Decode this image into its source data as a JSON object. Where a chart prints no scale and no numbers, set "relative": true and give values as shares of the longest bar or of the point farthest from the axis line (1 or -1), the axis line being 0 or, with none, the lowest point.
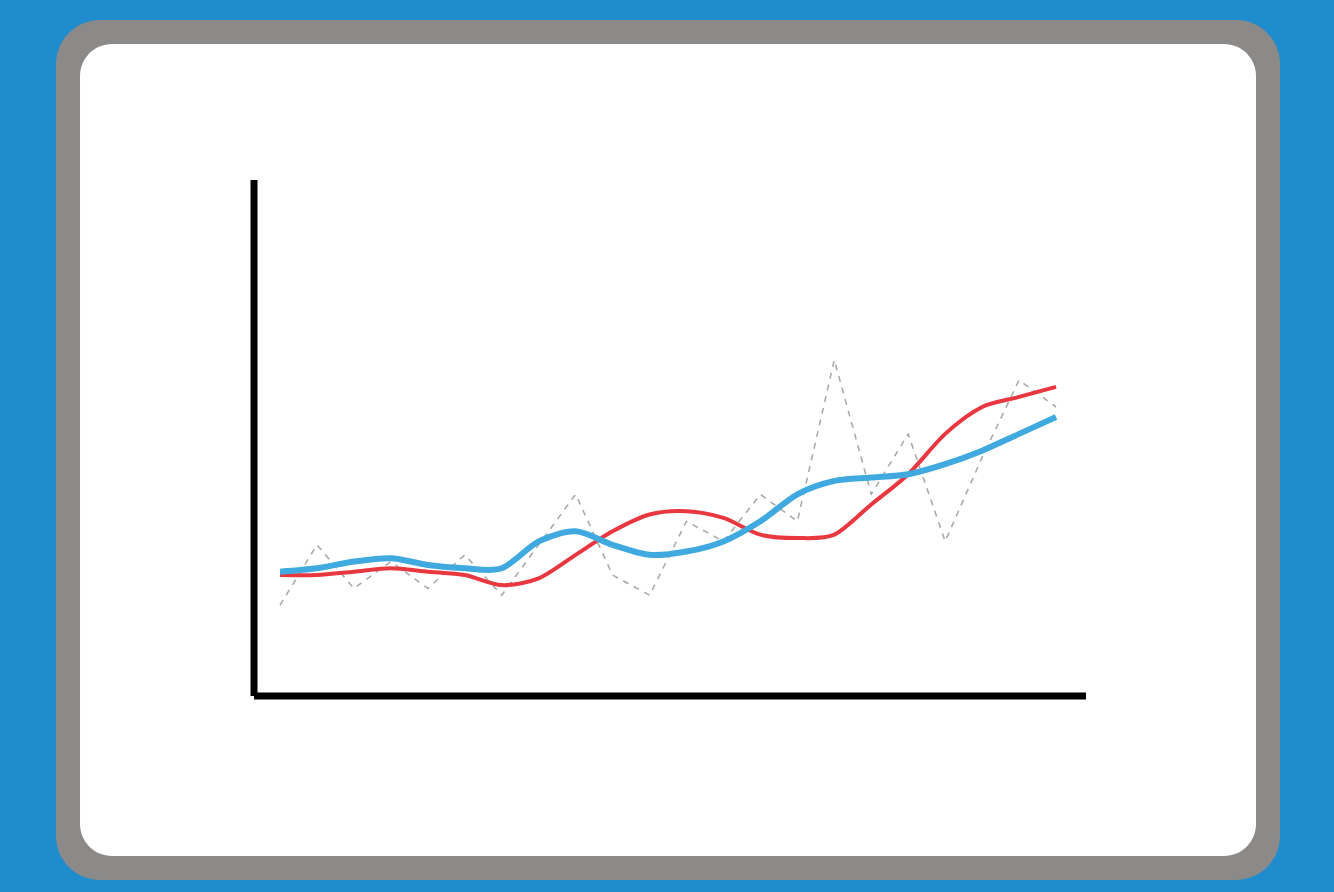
{
  "chart_data": {
    "type": "line",
    "relative": true,
    "categories": [
      null,
      null,
      null,
      null,
      null,
      null,
      null,
      null,
      null,
      null,
      null,
      null,
      null,
      null,
      null,
      null,
      null,
      null,
      null,
      null,
      null,
      null
    ],
    "series": [
      {
        "color": "#aaaaaa",
        "line_style": "dashed",
        "values": [
          0.27,
          0.45,
          0.32,
          0.4,
          0.32,
          0.42,
          0.3,
          0.45,
          0.6,
          0.36,
          0.3,
          0.52,
          0.46,
          0.6,
          0.52,
          1.0,
          0.6,
          0.78,
          0.46,
          0.71,
          0.94,
          0.86
        ]
      },
      {
        "color": "#e8373f",
        "line_style": "solid",
        "values": [
          0.36,
          0.36,
          0.37,
          0.38,
          0.37,
          0.36,
          0.33,
          0.35,
          0.42,
          0.49,
          0.54,
          0.55,
          0.53,
          0.48,
          0.47,
          0.48,
          0.57,
          0.66,
          0.78,
          0.86,
          0.89,
          0.92
        ]
      },
      {
        "color": "#3fa9e0",
        "line_style": "solid",
        "values": [
          0.37,
          0.38,
          0.4,
          0.41,
          0.39,
          0.38,
          0.38,
          0.46,
          0.49,
          0.45,
          0.42,
          0.43,
          0.46,
          0.52,
          0.6,
          0.64,
          0.65,
          0.66,
          0.69,
          0.73,
          0.78,
          0.83
        ]
      }
    ],
    "marker": "none"
  }
}
